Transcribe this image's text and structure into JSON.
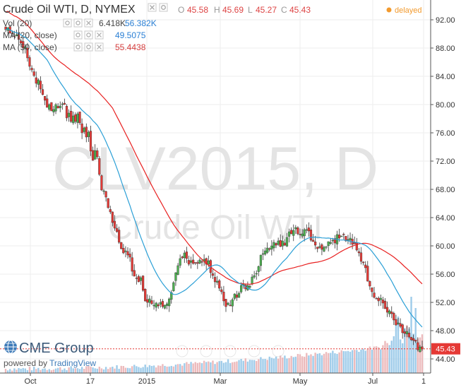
{
  "header": {
    "symbol_title": "Crude Oil WTI, D, NYMEX",
    "ohlc": [
      {
        "key": "O",
        "value": "45.58"
      },
      {
        "key": "H",
        "value": "45.69"
      },
      {
        "key": "L",
        "value": "45.27"
      },
      {
        "key": "C",
        "value": "45.43"
      }
    ],
    "status": "delayed"
  },
  "indicators": [
    {
      "name": "Vol (20)",
      "values": [
        "6.418K",
        "56.382K"
      ],
      "value_colors": [
        "#444444",
        "#2a7fd4"
      ]
    },
    {
      "name": "MA (20, close)",
      "values": [
        "49.5075"
      ],
      "value_colors": [
        "#2a7fd4"
      ]
    },
    {
      "name": "MA (50, close)",
      "values": [
        "55.4438"
      ],
      "value_colors": [
        "#d43c3c"
      ]
    }
  ],
  "watermark": {
    "line1": "CLV2015, D",
    "line2": "Crude Oil WTI"
  },
  "branding": {
    "logo_text": "CME Group",
    "powered_by": "powered by",
    "link_text": "TradingView"
  },
  "colors": {
    "up": "#4caf50",
    "down": "#e53935",
    "ma20": "#2a9fd6",
    "ma50": "#e82020",
    "volume": "#8ec3e6",
    "price_line": "#e53935",
    "grid": "#eeeeee"
  },
  "chart_data": {
    "type": "candlestick",
    "title": "Crude Oil WTI, D, NYMEX",
    "xlabel": "",
    "ylabel": "",
    "x_tick_labels": [
      "Oct",
      "17",
      "2015",
      "Mar",
      "May",
      "Jul",
      "1"
    ],
    "y_ticks": [
      "92.00",
      "88.00",
      "84.00",
      "80.00",
      "76.00",
      "72.00",
      "68.00",
      "64.00",
      "60.00",
      "56.00",
      "52.00",
      "48.00",
      "44.00"
    ],
    "ylim": [
      42.5,
      94.5
    ],
    "last_price_label": "45.43",
    "grid": true,
    "close_approx": [
      90.6,
      90.9,
      90.1,
      90.0,
      89.6,
      89.9,
      89.2,
      88.7,
      88.0,
      88.2,
      86.6,
      85.4,
      84.9,
      84.1,
      83.0,
      83.5,
      82.2,
      81.4,
      80.6,
      79.6,
      80.0,
      79.1,
      79.3,
      80.0,
      79.5,
      79.8,
      80.1,
      80.0,
      78.1,
      78.8,
      77.6,
      78.4,
      77.6,
      78.7,
      77.4,
      76.0,
      76.7,
      75.4,
      76.1,
      73.4,
      72.1,
      73.5,
      72.6,
      70.1,
      67.9,
      67.8,
      66.9,
      65.4,
      64.8,
      63.3,
      62.5,
      62.0,
      60.5,
      59.6,
      59.0,
      59.3,
      58.7,
      58.4,
      56.4,
      55.7,
      55.4,
      54.9,
      55.5,
      53.7,
      52.2,
      52.0,
      52.5,
      51.8,
      51.6,
      51.9,
      51.5,
      52.0,
      51.4,
      51.6,
      51.8,
      52.5,
      53.4,
      54.8,
      56.2,
      57.2,
      58.2,
      58.3,
      59.0,
      58.2,
      57.4,
      57.9,
      57.5,
      57.6,
      57.5,
      58.0,
      57.7,
      58.1,
      57.4,
      57.9,
      56.2,
      55.8,
      54.9,
      55.0,
      54.0,
      53.5,
      52.2,
      51.4,
      51.9,
      51.5,
      52.4,
      53.2,
      52.7,
      53.3,
      54.4,
      54.6,
      53.9,
      54.4,
      54.3,
      55.6,
      55.8,
      56.1,
      57.1,
      58.7,
      58.9,
      59.3,
      59.7,
      59.5,
      60.0,
      60.5,
      60.1,
      60.7,
      59.9,
      60.7,
      60.1,
      61.2,
      62.0,
      61.7,
      62.2,
      62.6,
      61.7,
      61.6,
      61.7,
      62.3,
      62.3,
      62.1,
      60.8,
      60.6,
      60.1,
      59.6,
      59.9,
      59.5,
      59.8,
      59.9,
      60.6,
      60.5,
      60.8,
      60.4,
      61.6,
      61.1,
      61.4,
      61.6,
      60.7,
      60.9,
      61.1,
      60.2,
      60.3,
      59.4,
      59.0,
      57.8,
      57.6,
      56.9,
      55.0,
      54.3,
      53.5,
      52.7,
      52.5,
      52.2,
      52.6,
      51.9,
      51.1,
      50.6,
      50.8,
      50.4,
      49.5,
      48.8,
      49.1,
      48.6,
      47.7,
      47.6,
      47.9,
      47.1,
      46.7,
      46.6,
      46.5,
      45.3,
      45.7,
      45.4
    ]
  }
}
